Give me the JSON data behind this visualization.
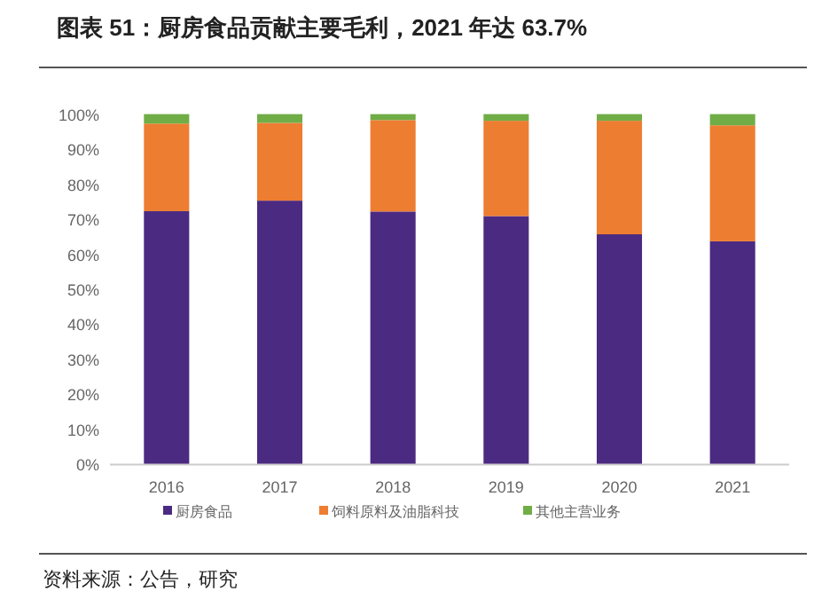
{
  "chart_data": {
    "type": "bar",
    "stacked": true,
    "title": "图表 51：厨房食品贡献主要毛利，2021 年达 63.7%",
    "categories": [
      "2016",
      "2017",
      "2018",
      "2019",
      "2020",
      "2021"
    ],
    "series": [
      {
        "name": "厨房食品",
        "color": "#4b2a82",
        "values": [
          72.3,
          75.3,
          72.2,
          70.9,
          65.7,
          63.7
        ]
      },
      {
        "name": "饲料原料及油脂科技",
        "color": "#ed7d31",
        "values": [
          25.0,
          22.2,
          26.1,
          27.2,
          32.4,
          33.1
        ]
      },
      {
        "name": "其他主营业务",
        "color": "#70ad47",
        "values": [
          2.7,
          2.5,
          1.7,
          1.9,
          1.9,
          3.2
        ]
      }
    ],
    "ylim": [
      0,
      100
    ],
    "yticks": [
      {
        "value": 0,
        "label": "0%"
      },
      {
        "value": 10,
        "label": "10%"
      },
      {
        "value": 20,
        "label": "20%"
      },
      {
        "value": 30,
        "label": "30%"
      },
      {
        "value": 40,
        "label": "40%"
      },
      {
        "value": 50,
        "label": "50%"
      },
      {
        "value": 60,
        "label": "60%"
      },
      {
        "value": 70,
        "label": "70%"
      },
      {
        "value": 80,
        "label": "80%"
      },
      {
        "value": 90,
        "label": "90%"
      },
      {
        "value": 100,
        "label": "100%"
      }
    ],
    "grid": false,
    "legend": "bottom",
    "annotations": [
      "资料来源：公告，研究"
    ]
  }
}
